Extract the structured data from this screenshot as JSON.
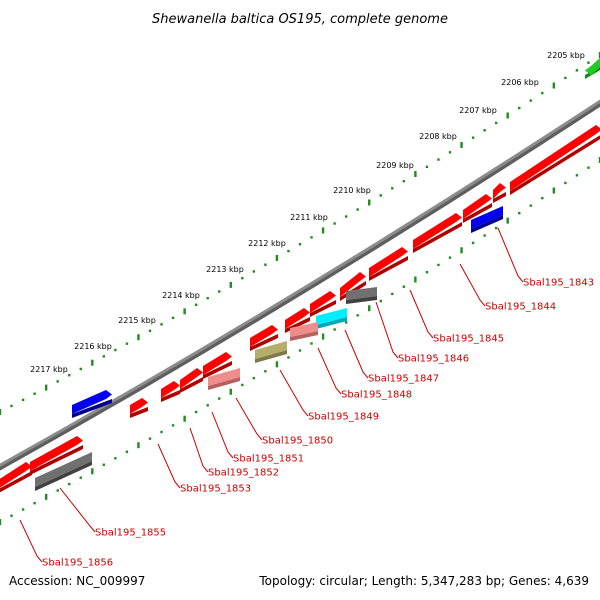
{
  "title": "Shewanella baltica OS195, complete genome",
  "accession": "Accession: NC_009997",
  "summary": "Topology: circular; Length: 5,347,283 bp; Genes: 4,639",
  "ticks": [
    "2205 kbp",
    "2206 kbp",
    "2207 kbp",
    "2208 kbp",
    "2209 kbp",
    "2210 kbp",
    "2211 kbp",
    "2212 kbp",
    "2213 kbp",
    "2214 kbp",
    "2215 kbp",
    "2216 kbp",
    "2217 kbp"
  ],
  "colors": {
    "red": "#ff0000",
    "red_dark": "#b00000",
    "pink": "#ef8c8c",
    "pink_dark": "#b86060",
    "olive": "#b5ad6a",
    "olive_dark": "#7e784a",
    "cyan": "#00eeff",
    "cyan_dark": "#00a8b8",
    "gray": "#707070",
    "gray_dark": "#404040",
    "blue": "#0000ee",
    "blue_dark": "#000090",
    "green": "#22cc22",
    "green_dark": "#168816",
    "backbone": "#8c8c8c",
    "dots": "#1e8c1e",
    "label": "#cc0000"
  },
  "labels": [
    "Sbal195_1843",
    "Sbal195_1844",
    "Sbal195_1845",
    "Sbal195_1846",
    "Sbal195_1847",
    "Sbal195_1848",
    "Sbal195_1849",
    "Sbal195_1850",
    "Sbal195_1851",
    "Sbal195_1852",
    "Sbal195_1853",
    "Sbal195_1855",
    "Sbal195_1856"
  ]
}
